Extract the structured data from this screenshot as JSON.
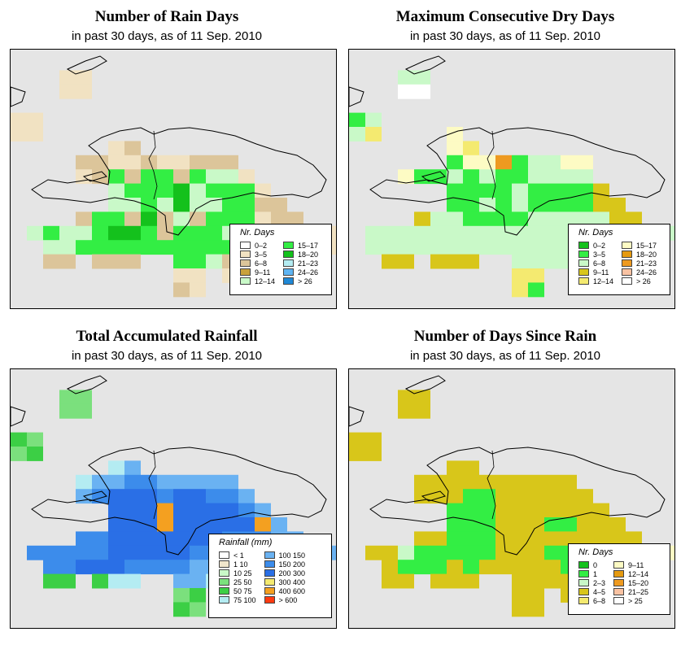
{
  "panels": [
    {
      "id": "rain-days",
      "title": "Number of Rain Days",
      "subtitle": "in past 30 days, as of  11 Sep. 2010",
      "legend": {
        "title": "Nr. Days",
        "items": [
          {
            "label": "0–2",
            "color": "#ffffff"
          },
          {
            "label": "3–5",
            "color": "#f1e2c2"
          },
          {
            "label": "6–8",
            "color": "#dcc59a"
          },
          {
            "label": "9–11",
            "color": "#c9a13c"
          },
          {
            "label": "12–14",
            "color": "#c9f9c8"
          },
          {
            "label": "15–17",
            "color": "#33ee44"
          },
          {
            "label": "18–20",
            "color": "#14c11c"
          },
          {
            "label": "21–23",
            "color": "#b4ecf2"
          },
          {
            "label": "24–26",
            "color": "#5eb4f2"
          },
          {
            "label": "> 26",
            "color": "#1f88d6"
          }
        ]
      }
    },
    {
      "id": "dry-days",
      "title": "Maximum Consecutive Dry Days",
      "subtitle": "in past 30 days, as of  11 Sep. 2010",
      "legend": {
        "title": "Nr. Days",
        "items": [
          {
            "label": "0–2",
            "color": "#14c11c"
          },
          {
            "label": "3–5",
            "color": "#33ee44"
          },
          {
            "label": "6–8",
            "color": "#c9f9c8"
          },
          {
            "label": "9–11",
            "color": "#d8c61a"
          },
          {
            "label": "12–14",
            "color": "#f4ea70"
          },
          {
            "label": "15–17",
            "color": "#fdfbc4"
          },
          {
            "label": "18–20",
            "color": "#e59a10"
          },
          {
            "label": "21–23",
            "color": "#ee9a20"
          },
          {
            "label": "24–26",
            "color": "#f9c2a2"
          },
          {
            "label": "> 26",
            "color": "#ffffff"
          }
        ]
      }
    },
    {
      "id": "total-rain",
      "title": "Total Accumulated Rainfall",
      "subtitle": "in past 30 days, as of  11 Sep. 2010",
      "legend": {
        "title": "Rainfall (mm)",
        "items": [
          {
            "label": "< 1",
            "color": "#ffffff"
          },
          {
            "label": "1   10",
            "color": "#f1e6cc"
          },
          {
            "label": "10   25",
            "color": "#c9f9c8"
          },
          {
            "label": "25   50",
            "color": "#7be07d"
          },
          {
            "label": "50   75",
            "color": "#3ccf45"
          },
          {
            "label": "75   100",
            "color": "#b4ecf2"
          },
          {
            "label": "100   150",
            "color": "#6ab2f2"
          },
          {
            "label": "150   200",
            "color": "#3c8ceb"
          },
          {
            "label": "200   300",
            "color": "#2a6fe6"
          },
          {
            "label": "300   400",
            "color": "#f4ea70"
          },
          {
            "label": "400   600",
            "color": "#f4a020"
          },
          {
            "label": "> 600",
            "color": "#ff3a10"
          }
        ]
      }
    },
    {
      "id": "since-rain",
      "title": "Number of Days Since Rain",
      "subtitle": "in past 30 days, as of  11 Sep. 2010",
      "legend": {
        "title": "Nr. Days",
        "items": [
          {
            "label": "0",
            "color": "#14c11c"
          },
          {
            "label": "1",
            "color": "#33ee44"
          },
          {
            "label": "2–3",
            "color": "#c9f9c8"
          },
          {
            "label": "4–5",
            "color": "#d8c61a"
          },
          {
            "label": "6–8",
            "color": "#f4ea70"
          },
          {
            "label": "9–11",
            "color": "#fdfbc4"
          },
          {
            "label": "12–14",
            "color": "#e59a10"
          },
          {
            "label": "15–20",
            "color": "#ee9a20"
          },
          {
            "label": "21–25",
            "color": "#f9c2a2"
          },
          {
            "label": "> 25",
            "color": "#ffffff"
          }
        ]
      }
    }
  ],
  "map_cells": {
    "rain-days": [
      "....................",
      "...AA...............",
      "...AA...............",
      "....................",
      "AA..................",
      "AA..................",
      "......AB............",
      "....BBAABAABBB......",
      "....ABEBEEBEDDA.....",
      "......DEEEFDEEEA....",
      "......DDEDFDDEEBB...",
      "....BEEBFBDBEEEABB..",
      ".DEDDEFFEBEEEDEEABAA",
      "..DDEEEEEEEEEEEEABAA",
      "..BB.BBB..EEDBBBBA..",
      "..........AA.A......",
      "..........BA.......",
      "...................."
    ],
    "dry-days": [
      "....................",
      "...BB...............",
      "...II...............",
      "....................",
      "AB..................",
      "BD....E.............",
      "......ED............",
      "......AEEGABBEE.....",
      "...EAABABAABBBB.....",
      "......AAAABAAAAC....",
      "......AABABAAAACC...",
      "....CBBAAAABBBBBCC..",
      ".BBBBBBBBBBBBBBBBBBB",
      ".BBBBBBBBBBBBBBBBBB.",
      "..CC.CCC..BBBBCC....",
      "..........DD........",
      "..........DA........",
      "...................."
    ],
    "total-rain": [
      "....................",
      "...CC...............",
      "...CC...............",
      "....................",
      "DC..................",
      "CD..................",
      "......EF............",
      "....EFFGGFFFFF......",
      "....FGHHHGHHGGF.....",
      "......HHHJHHHHGF....",
      "......HHHJHHHHHJF...",
      "....GGHHHHHHHGGGFF..",
      ".GGGGGHHHHHGGGGFFFFF",
      "..GGHHHGGGGFFGFFFFF.",
      "..DD.DEE..FFEDEE....",
      "..........CD.C......",
      "..........DC........",
      "...................."
    ],
    "since-rain": [
      "....................",
      "...CC...............",
      "...CC...............",
      "....................",
      "CC..................",
      "CC..................",
      "......CC............",
      "....CCCCCCCCCC......",
      "....CCCAACCCCCC.....",
      "......AAACCCCCCC....",
      "......AAACCCAACCC...",
      "....CCAAACCCCCCCCC..",
      ".CCBAAAAACCCAACCCCCE",
      "..CAAACACCCCCAECCCC.",
      "..CC.CCC..CCCCCC....",
      "..........CC.C......",
      "..........CC........",
      "...................."
    ]
  }
}
